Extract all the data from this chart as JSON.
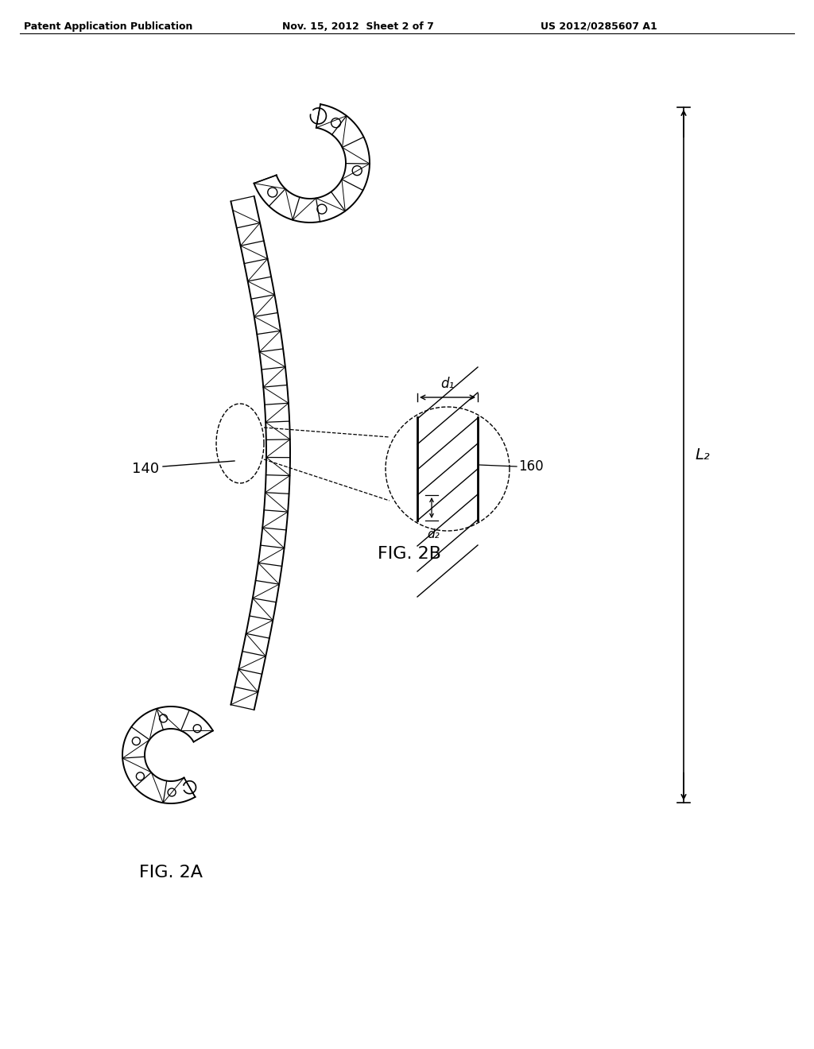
{
  "bg_color": "#ffffff",
  "header_left": "Patent Application Publication",
  "header_mid": "Nov. 15, 2012  Sheet 2 of 7",
  "header_right": "US 2012/0285607 A1",
  "fig2a_label": "FIG. 2A",
  "fig2b_label": "FIG. 2B",
  "label_140": "140",
  "label_160": "160",
  "label_d1": "d₁",
  "label_d2": "d₂",
  "label_L2": "L₂",
  "line_color": "#000000"
}
